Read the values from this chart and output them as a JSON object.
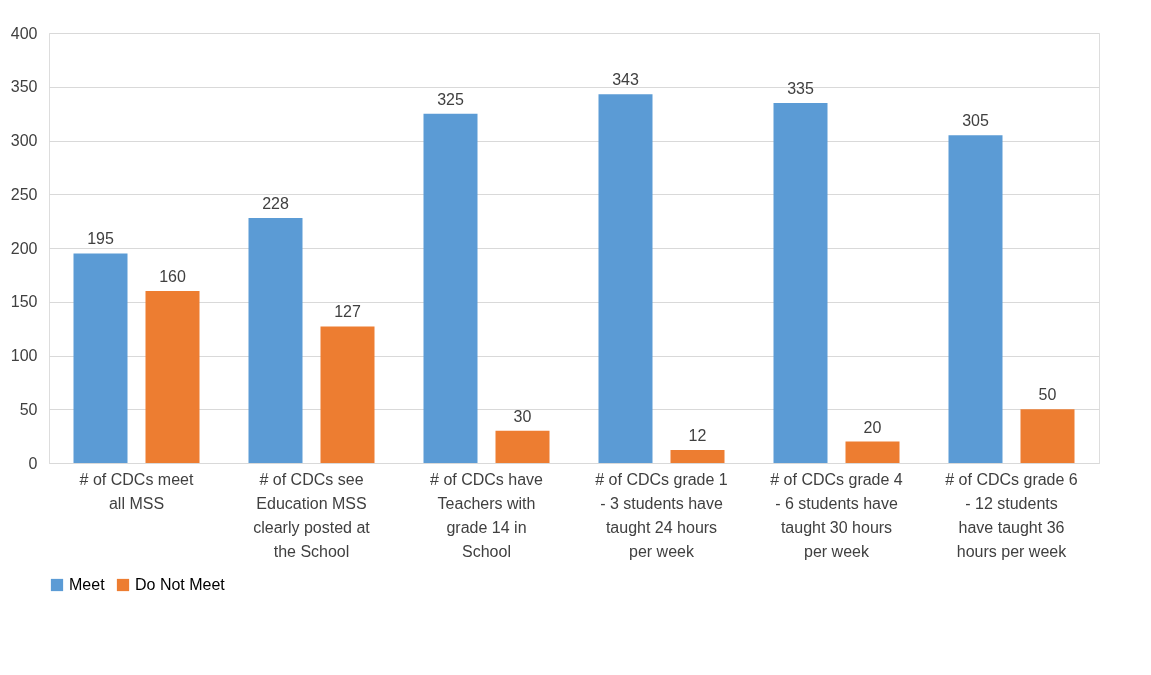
{
  "chart_data": {
    "type": "bar",
    "categories": [
      "# of CDCs meet all MSS",
      "# of CDCs see Education MSS clearly posted at the School",
      "# of CDCs have Teachers with grade 14 in School",
      "# of CDCs grade 1 - 3 students have taught 24 hours per week",
      "# of CDCs grade 4 - 6 students have taught 30 hours per week",
      "# of CDCs grade 6 - 12 students have taught 36 hours per week"
    ],
    "series": [
      {
        "name": "Meet",
        "color": "#5b9bd5",
        "values": [
          195,
          228,
          325,
          343,
          335,
          305
        ]
      },
      {
        "name": "Do Not Meet",
        "color": "#ed7d31",
        "values": [
          160,
          127,
          30,
          12,
          20,
          50
        ]
      }
    ],
    "ylim": [
      0,
      400
    ],
    "yticks": [
      0,
      50,
      100,
      150,
      200,
      250,
      300,
      350,
      400
    ],
    "grid": "y",
    "legend": "bottom",
    "data_labels": true
  }
}
